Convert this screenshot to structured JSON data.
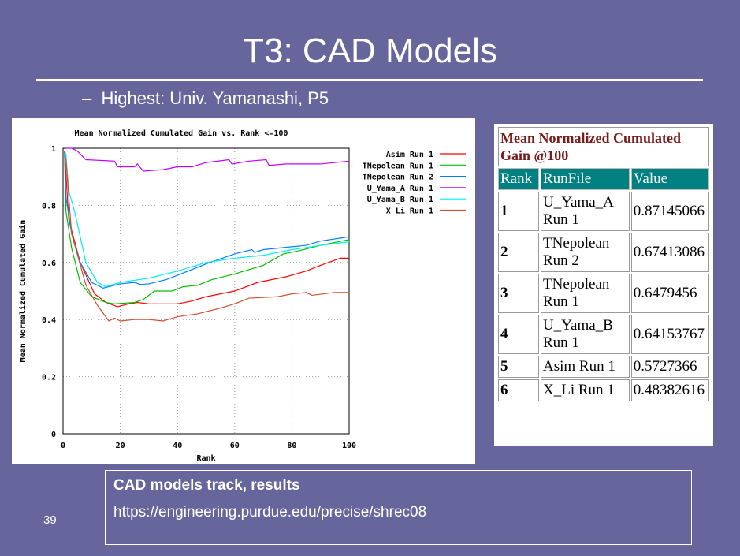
{
  "slide": {
    "title": "T3: CAD Models",
    "bullet": "Highest: Univ. Yamanashi, P5",
    "bullet_marker": "–",
    "page_number": "39",
    "source_heading": "CAD models track, results",
    "source_url": "https://engineering.purdue.edu/precise/shrec08"
  },
  "table": {
    "caption": "Mean Normalized Cumulated Gain @100",
    "headers": [
      "Rank",
      "RunFile",
      "Value"
    ],
    "rows": [
      [
        "1",
        "U_Yama_A Run 1",
        "0.87145066"
      ],
      [
        "2",
        "TNepolean Run 2",
        "0.67413086"
      ],
      [
        "3",
        "TNepolean Run 1",
        "0.6479456"
      ],
      [
        "4",
        "U_Yama_B Run 1",
        "0.64153767"
      ],
      [
        "5",
        "Asim Run 1",
        "0.5727366"
      ],
      [
        "6",
        "X_Li Run 1",
        "0.48382616"
      ]
    ]
  },
  "chart_data": {
    "type": "line",
    "title": "Mean Normalized Cumulated Gain vs. Rank <=100",
    "xlabel": "Rank",
    "ylabel": "Mean Normalized Cumulated Gain",
    "xlim": [
      0,
      100
    ],
    "ylim": [
      0,
      1
    ],
    "xticks": [
      "0",
      "20",
      "40",
      "60",
      "80",
      "100"
    ],
    "yticks": [
      "0",
      "0.2",
      "0.4",
      "0.6",
      "0.8",
      "1"
    ],
    "grid": true,
    "legend": "top-right outside",
    "series": [
      {
        "name": "Asim Run 1",
        "color": "#ff0000",
        "x": [
          0.5,
          2,
          6,
          11,
          15,
          19,
          23,
          26,
          30,
          40,
          45,
          50,
          60,
          68,
          78,
          85,
          90,
          97,
          100
        ],
        "y": [
          0.99,
          0.75,
          0.6,
          0.49,
          0.46,
          0.445,
          0.455,
          0.46,
          0.455,
          0.455,
          0.465,
          0.48,
          0.5,
          0.53,
          0.55,
          0.57,
          0.59,
          0.615,
          0.615
        ]
      },
      {
        "name": "TNepolean Run 1",
        "color": "#00c000",
        "x": [
          0.5,
          1,
          3,
          6,
          10,
          15,
          18,
          25,
          28,
          32,
          38,
          42,
          47,
          52,
          60,
          70,
          77,
          82,
          90,
          100
        ],
        "y": [
          0.99,
          0.78,
          0.65,
          0.53,
          0.48,
          0.46,
          0.455,
          0.46,
          0.47,
          0.5,
          0.5,
          0.515,
          0.52,
          0.54,
          0.56,
          0.59,
          0.63,
          0.64,
          0.66,
          0.68
        ]
      },
      {
        "name": "TNepolean Run 2",
        "color": "#0080ff",
        "x": [
          0.5,
          1,
          3,
          6,
          10,
          14,
          20,
          25,
          27,
          30,
          36,
          40,
          50,
          60,
          66,
          67,
          70,
          80,
          85,
          90,
          100
        ],
        "y": [
          0.99,
          0.83,
          0.7,
          0.6,
          0.53,
          0.51,
          0.525,
          0.53,
          0.523,
          0.525,
          0.54,
          0.555,
          0.595,
          0.63,
          0.645,
          0.635,
          0.645,
          0.655,
          0.66,
          0.675,
          0.69
        ]
      },
      {
        "name": "U_Yama_A Run 1",
        "color": "#c000ff",
        "x": [
          1,
          3,
          5,
          8,
          18,
          19,
          25,
          26,
          28,
          35,
          40,
          45,
          50,
          58,
          59,
          65,
          71,
          72,
          78,
          90,
          100
        ],
        "y": [
          1.0,
          1.0,
          0.99,
          0.96,
          0.955,
          0.935,
          0.935,
          0.945,
          0.92,
          0.925,
          0.935,
          0.935,
          0.95,
          0.96,
          0.945,
          0.955,
          0.96,
          0.94,
          0.945,
          0.945,
          0.955
        ]
      },
      {
        "name": "U_Yama_B Run 1",
        "color": "#00eeee",
        "x": [
          0.5,
          1,
          2,
          4,
          8,
          12,
          15,
          20,
          30,
          40,
          50,
          60,
          70,
          80,
          90,
          100
        ],
        "y": [
          0.99,
          0.98,
          0.85,
          0.78,
          0.6,
          0.53,
          0.515,
          0.53,
          0.545,
          0.57,
          0.6,
          0.615,
          0.625,
          0.645,
          0.66,
          0.672
        ]
      },
      {
        "name": "X_Li Run 1",
        "color": "#d05030",
        "x": [
          0.5,
          1,
          3,
          8,
          12,
          16,
          18,
          20,
          25,
          30,
          35,
          40,
          47,
          55,
          60,
          65,
          75,
          80,
          85,
          87,
          95,
          100
        ],
        "y": [
          0.99,
          0.96,
          0.7,
          0.52,
          0.45,
          0.395,
          0.405,
          0.395,
          0.4,
          0.4,
          0.395,
          0.41,
          0.42,
          0.44,
          0.455,
          0.475,
          0.48,
          0.49,
          0.495,
          0.485,
          0.495,
          0.495
        ]
      }
    ]
  }
}
